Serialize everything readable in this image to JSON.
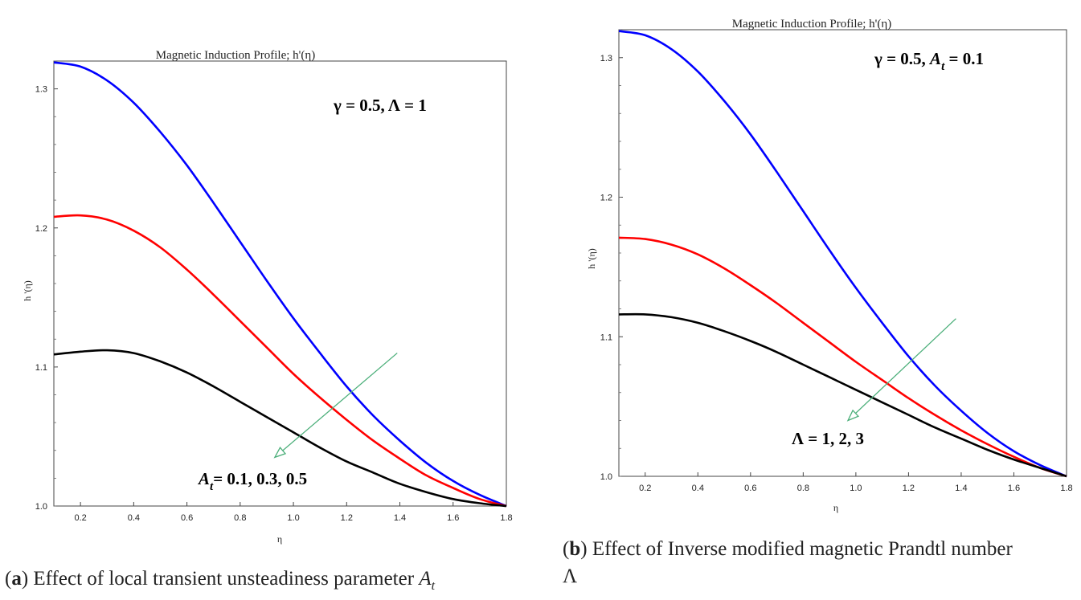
{
  "chart_data": [
    {
      "type": "line",
      "title": "Magnetic Induction Profile; h'(η)",
      "xlabel": "η",
      "ylabel": "h '(η)",
      "xlim": [
        0.1,
        1.8
      ],
      "ylim": [
        1.0,
        1.32
      ],
      "xticks": [
        "0.2",
        "0.4",
        "0.6",
        "0.8",
        "1.0",
        "1.2",
        "1.4",
        "1.6",
        "1.8"
      ],
      "yticks": [
        "1.0",
        "1.1",
        "1.2",
        "1.3"
      ],
      "grid": false,
      "series": [
        {
          "color": "#0000ff",
          "x": [
            0.1,
            0.2,
            0.3,
            0.4,
            0.5,
            0.6,
            0.7,
            0.8,
            0.9,
            1.0,
            1.1,
            1.2,
            1.3,
            1.4,
            1.5,
            1.6,
            1.7,
            1.8
          ],
          "y": [
            1.319,
            1.316,
            1.306,
            1.29,
            1.269,
            1.245,
            1.218,
            1.19,
            1.162,
            1.135,
            1.11,
            1.086,
            1.065,
            1.047,
            1.031,
            1.018,
            1.008,
            1.0
          ]
        },
        {
          "color": "#ff0000",
          "x": [
            0.1,
            0.2,
            0.3,
            0.4,
            0.5,
            0.6,
            0.7,
            0.8,
            0.9,
            1.0,
            1.1,
            1.2,
            1.3,
            1.4,
            1.5,
            1.6,
            1.7,
            1.8
          ],
          "y": [
            1.208,
            1.209,
            1.206,
            1.198,
            1.186,
            1.17,
            1.152,
            1.133,
            1.114,
            1.095,
            1.078,
            1.062,
            1.047,
            1.034,
            1.022,
            1.013,
            1.005,
            1.0
          ]
        },
        {
          "color": "#000000",
          "x": [
            0.1,
            0.2,
            0.3,
            0.4,
            0.5,
            0.6,
            0.7,
            0.8,
            0.9,
            1.0,
            1.1,
            1.2,
            1.3,
            1.4,
            1.5,
            1.6,
            1.7,
            1.8
          ],
          "y": [
            1.109,
            1.111,
            1.112,
            1.11,
            1.104,
            1.096,
            1.086,
            1.075,
            1.064,
            1.053,
            1.042,
            1.032,
            1.024,
            1.016,
            1.01,
            1.005,
            1.002,
            1.0
          ]
        }
      ],
      "params_text": "γ = 0.5, Λ = 1",
      "arrow": {
        "from": [
          1.39,
          1.11
        ],
        "to": [
          0.93,
          1.035
        ],
        "color": "#4caf7a"
      },
      "arrow_label": {
        "symbol": "A",
        "subscript": "t",
        "values": "= 0.1, 0.3, 0.5"
      },
      "caption": {
        "letter": "a",
        "text": "Effect of local transient unsteadiness parameter",
        "symbol": "A",
        "subscript": "t"
      }
    },
    {
      "type": "line",
      "title": "Magnetic Induction Profile; h'(η)",
      "xlabel": "η",
      "ylabel": "h '(η)",
      "xlim": [
        0.1,
        1.8
      ],
      "ylim": [
        1.0,
        1.32
      ],
      "xticks": [
        "0.2",
        "0.4",
        "0.6",
        "0.8",
        "1.0",
        "1.2",
        "1.4",
        "1.6",
        "1.8"
      ],
      "yticks": [
        "1.0",
        "1.1",
        "1.2",
        "1.3"
      ],
      "grid": false,
      "series": [
        {
          "color": "#0000ff",
          "x": [
            0.1,
            0.2,
            0.3,
            0.4,
            0.5,
            0.6,
            0.7,
            0.8,
            0.9,
            1.0,
            1.1,
            1.2,
            1.3,
            1.4,
            1.5,
            1.6,
            1.7,
            1.8
          ],
          "y": [
            1.319,
            1.316,
            1.306,
            1.29,
            1.269,
            1.245,
            1.218,
            1.19,
            1.162,
            1.135,
            1.11,
            1.086,
            1.065,
            1.047,
            1.031,
            1.018,
            1.008,
            1.0
          ]
        },
        {
          "color": "#ff0000",
          "x": [
            0.1,
            0.2,
            0.3,
            0.4,
            0.5,
            0.6,
            0.7,
            0.8,
            0.9,
            1.0,
            1.1,
            1.2,
            1.3,
            1.4,
            1.5,
            1.6,
            1.7,
            1.8
          ],
          "y": [
            1.171,
            1.17,
            1.166,
            1.159,
            1.149,
            1.137,
            1.124,
            1.11,
            1.096,
            1.082,
            1.069,
            1.056,
            1.044,
            1.033,
            1.023,
            1.014,
            1.006,
            1.0
          ]
        },
        {
          "color": "#000000",
          "x": [
            0.1,
            0.2,
            0.3,
            0.4,
            0.5,
            0.6,
            0.7,
            0.8,
            0.9,
            1.0,
            1.1,
            1.2,
            1.3,
            1.4,
            1.5,
            1.6,
            1.7,
            1.8
          ],
          "y": [
            1.116,
            1.116,
            1.114,
            1.11,
            1.104,
            1.097,
            1.089,
            1.08,
            1.071,
            1.062,
            1.053,
            1.044,
            1.035,
            1.027,
            1.019,
            1.012,
            1.006,
            1.0
          ]
        }
      ],
      "params_text": "γ = 0.5, ",
      "params_symbol": "A",
      "params_subscript": "t",
      "params_value": " = 0.1",
      "arrow": {
        "from": [
          1.38,
          1.113
        ],
        "to": [
          0.97,
          1.04
        ],
        "color": "#4caf7a"
      },
      "arrow_label": {
        "values": "Λ = 1, 2, 3"
      },
      "caption": {
        "letter": "b",
        "text": "Effect of Inverse modified magnetic Prandtl number",
        "line2": "Λ"
      }
    }
  ]
}
